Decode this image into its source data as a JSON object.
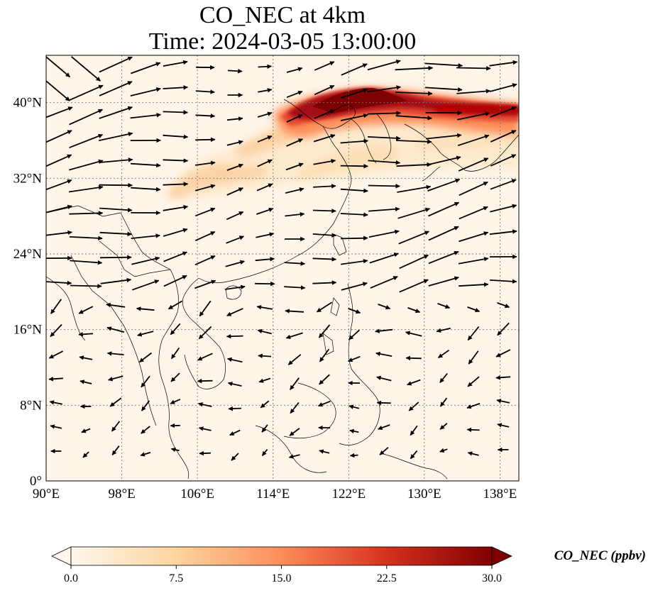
{
  "title": {
    "line1": "CO_NEC at 4km",
    "line2": "Time: 2024-03-05 13:00:00"
  },
  "map": {
    "x_ticks": [
      "90°E",
      "98°E",
      "106°E",
      "114°E",
      "122°E",
      "130°E",
      "138°E"
    ],
    "y_ticks": [
      "0°",
      "8°N",
      "16°N",
      "24°N",
      "32°N",
      "40°N"
    ],
    "lon_range": [
      90,
      140
    ],
    "lat_range": [
      0,
      45
    ],
    "grid": "dotted",
    "vectors": "wind arrows",
    "plume_note": "high CO_NEC over North China / Korea / Japan Sea near 38–42°N"
  },
  "colorbar": {
    "label": "CO_NEC (ppbv)",
    "ticks": [
      "0.0",
      "7.5",
      "15.0",
      "22.5",
      "30.0"
    ],
    "range": [
      0,
      30
    ],
    "colormap": "OrRd",
    "extend": "both",
    "colors": [
      "#fff7ec",
      "#fdd49e",
      "#fc8d59",
      "#d7301f",
      "#7f0000"
    ]
  }
}
